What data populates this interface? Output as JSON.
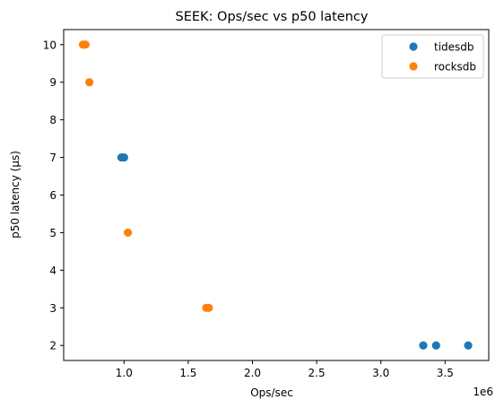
{
  "chart_data": {
    "type": "scatter",
    "title": "SEEK: Ops/sec vs p50 latency",
    "xlabel": "Ops/sec",
    "ylabel": "p50 latency (µs)",
    "x_offset_label": "1e6",
    "xlim": [
      530000,
      3840000
    ],
    "ylim": [
      1.6,
      10.4
    ],
    "x_ticks": [
      {
        "value": 1000000,
        "label": "1.0"
      },
      {
        "value": 1500000,
        "label": "1.5"
      },
      {
        "value": 2000000,
        "label": "2.0"
      },
      {
        "value": 2500000,
        "label": "2.5"
      },
      {
        "value": 3000000,
        "label": "3.0"
      },
      {
        "value": 3500000,
        "label": "3.5"
      }
    ],
    "y_ticks": [
      {
        "value": 2,
        "label": "2"
      },
      {
        "value": 3,
        "label": "3"
      },
      {
        "value": 4,
        "label": "4"
      },
      {
        "value": 5,
        "label": "5"
      },
      {
        "value": 6,
        "label": "6"
      },
      {
        "value": 7,
        "label": "7"
      },
      {
        "value": 8,
        "label": "8"
      },
      {
        "value": 9,
        "label": "9"
      },
      {
        "value": 10,
        "label": "10"
      }
    ],
    "grid": false,
    "legend_position": "top-right",
    "series": [
      {
        "name": "tidesdb",
        "color": "#1f77b4",
        "points": [
          {
            "x": 3330000,
            "y": 2
          },
          {
            "x": 3430000,
            "y": 2
          },
          {
            "x": 3680000,
            "y": 2
          },
          {
            "x": 980000,
            "y": 7
          },
          {
            "x": 1000000,
            "y": 7
          }
        ]
      },
      {
        "name": "rocksdb",
        "color": "#ff7f0e",
        "points": [
          {
            "x": 680000,
            "y": 10
          },
          {
            "x": 700000,
            "y": 10
          },
          {
            "x": 730000,
            "y": 9
          },
          {
            "x": 1030000,
            "y": 5
          },
          {
            "x": 1640000,
            "y": 3
          },
          {
            "x": 1660000,
            "y": 3
          }
        ]
      }
    ]
  }
}
